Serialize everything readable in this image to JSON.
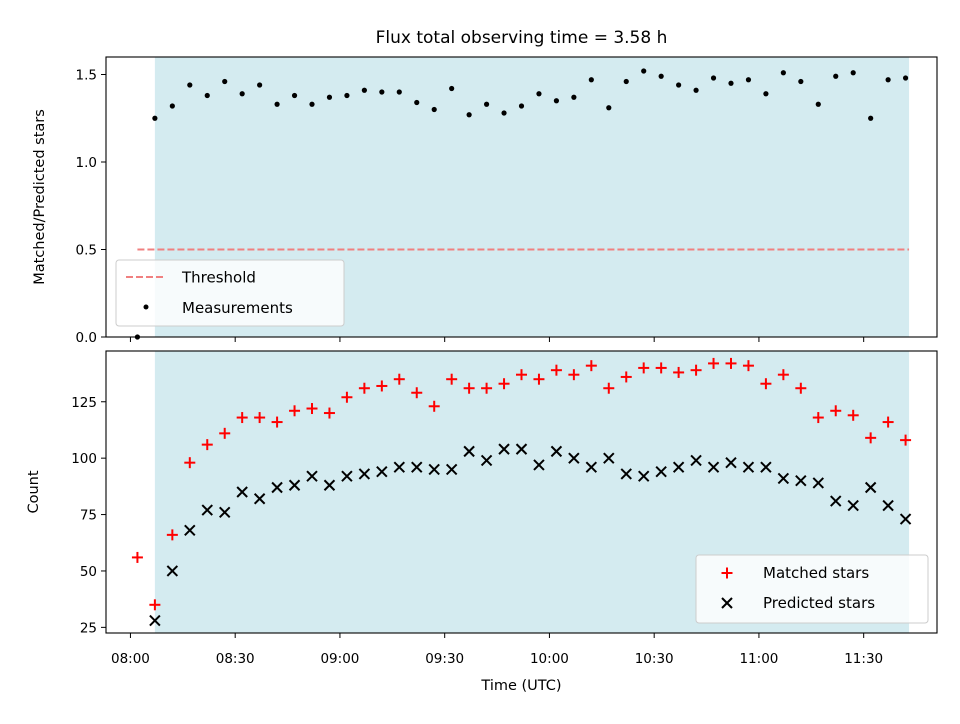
{
  "chart_data": [
    {
      "type": "scatter",
      "title": "Flux total observing time = 3.58 h",
      "xlabel": "",
      "ylabel": "Matched/Predicted stars",
      "ylim": [
        0,
        1.6
      ],
      "yticks": [
        "0.0",
        "0.5",
        "1.0",
        "1.5"
      ],
      "ytick_values": [
        0,
        0.5,
        1.0,
        1.5
      ],
      "shaded_range": [
        "08:07",
        "11:43"
      ],
      "shade_color": "#d4ebf0",
      "legend_position": "lower-left",
      "threshold": {
        "name": "Threshold",
        "value": 0.5,
        "x_range": [
          "08:02",
          "11:43"
        ],
        "color": "#f08080"
      },
      "measurements": {
        "name": "Measurements",
        "color": "#000000",
        "points": [
          [
            "08:02",
            0.0
          ],
          [
            "08:07",
            1.25
          ],
          [
            "08:12",
            1.32
          ],
          [
            "08:17",
            1.44
          ],
          [
            "08:22",
            1.38
          ],
          [
            "08:27",
            1.46
          ],
          [
            "08:32",
            1.39
          ],
          [
            "08:37",
            1.44
          ],
          [
            "08:42",
            1.33
          ],
          [
            "08:47",
            1.38
          ],
          [
            "08:52",
            1.33
          ],
          [
            "08:57",
            1.37
          ],
          [
            "09:02",
            1.38
          ],
          [
            "09:07",
            1.41
          ],
          [
            "09:12",
            1.4
          ],
          [
            "09:17",
            1.4
          ],
          [
            "09:22",
            1.34
          ],
          [
            "09:27",
            1.3
          ],
          [
            "09:32",
            1.42
          ],
          [
            "09:37",
            1.27
          ],
          [
            "09:42",
            1.33
          ],
          [
            "09:47",
            1.28
          ],
          [
            "09:52",
            1.32
          ],
          [
            "09:57",
            1.39
          ],
          [
            "10:02",
            1.35
          ],
          [
            "10:07",
            1.37
          ],
          [
            "10:12",
            1.47
          ],
          [
            "10:17",
            1.31
          ],
          [
            "10:22",
            1.46
          ],
          [
            "10:27",
            1.52
          ],
          [
            "10:32",
            1.49
          ],
          [
            "10:37",
            1.44
          ],
          [
            "10:42",
            1.41
          ],
          [
            "10:47",
            1.48
          ],
          [
            "10:52",
            1.45
          ],
          [
            "10:57",
            1.47
          ],
          [
            "11:02",
            1.39
          ],
          [
            "11:07",
            1.51
          ],
          [
            "11:12",
            1.46
          ],
          [
            "11:17",
            1.33
          ],
          [
            "11:22",
            1.49
          ],
          [
            "11:27",
            1.51
          ],
          [
            "11:32",
            1.25
          ],
          [
            "11:37",
            1.47
          ],
          [
            "11:42",
            1.48
          ]
        ]
      }
    },
    {
      "type": "scatter",
      "title": "",
      "xlabel": "Time (UTC)",
      "ylabel": "Count",
      "ylim": [
        22.5,
        147.5
      ],
      "xlim": [
        "07:53",
        "11:51"
      ],
      "yticks": [
        "25",
        "50",
        "75",
        "100",
        "125"
      ],
      "ytick_values": [
        25,
        50,
        75,
        100,
        125
      ],
      "xticks": [
        "08:00",
        "08:30",
        "09:00",
        "09:30",
        "10:00",
        "10:30",
        "11:00",
        "11:30"
      ],
      "shaded_range": [
        "08:07",
        "11:43"
      ],
      "shade_color": "#d4ebf0",
      "legend_position": "lower-right",
      "x": [
        "08:02",
        "08:07",
        "08:12",
        "08:17",
        "08:22",
        "08:27",
        "08:32",
        "08:37",
        "08:42",
        "08:47",
        "08:52",
        "08:57",
        "09:02",
        "09:07",
        "09:12",
        "09:17",
        "09:22",
        "09:27",
        "09:32",
        "09:37",
        "09:42",
        "09:47",
        "09:52",
        "09:57",
        "10:02",
        "10:07",
        "10:12",
        "10:17",
        "10:22",
        "10:27",
        "10:32",
        "10:37",
        "10:42",
        "10:47",
        "10:52",
        "10:57",
        "11:02",
        "11:07",
        "11:12",
        "11:17",
        "11:22",
        "11:27",
        "11:32",
        "11:37",
        "11:42"
      ],
      "series": [
        {
          "name": "Matched stars",
          "marker": "plus",
          "color": "#ff0000",
          "values": [
            56,
            35,
            66,
            98,
            106,
            111,
            118,
            118,
            116,
            121,
            122,
            120,
            127,
            131,
            132,
            135,
            129,
            123,
            135,
            131,
            131,
            133,
            137,
            135,
            139,
            137,
            141,
            131,
            136,
            140,
            140,
            138,
            139,
            142,
            142,
            141,
            133,
            137,
            131,
            118,
            121,
            119,
            109,
            116,
            108
          ]
        },
        {
          "name": "Predicted stars",
          "marker": "x",
          "color": "#000000",
          "values": [
            null,
            28,
            50,
            68,
            77,
            76,
            85,
            82,
            87,
            88,
            92,
            88,
            92,
            93,
            94,
            96,
            96,
            95,
            95,
            103,
            99,
            104,
            104,
            97,
            103,
            100,
            96,
            100,
            93,
            92,
            94,
            96,
            99,
            96,
            98,
            96,
            96,
            91,
            90,
            89,
            81,
            79,
            87,
            79,
            73
          ]
        }
      ]
    }
  ]
}
